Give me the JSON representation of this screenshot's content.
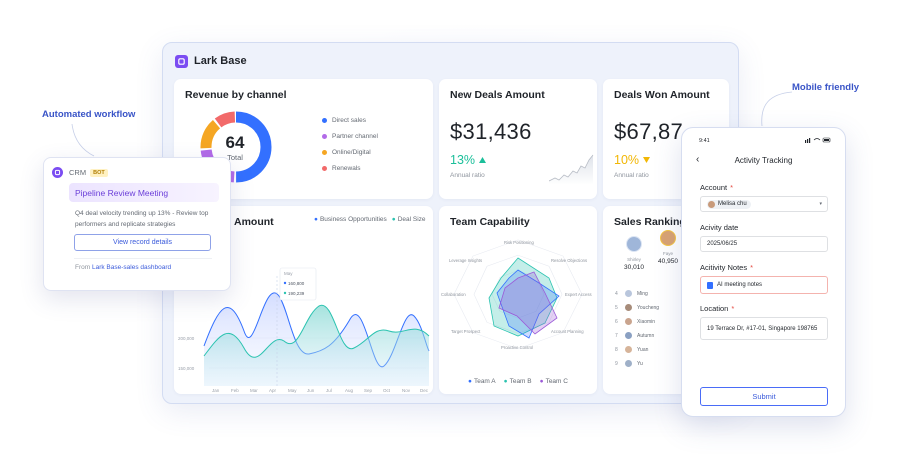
{
  "app": {
    "title": "Lark Base"
  },
  "callouts": {
    "left": "Automated workflow",
    "right": "Mobile friendly"
  },
  "revenue_card": {
    "title": "Revenue by channel",
    "center_value": "64",
    "center_label": "Total",
    "legend": [
      {
        "label": "Direct sales",
        "color": "#3370ff"
      },
      {
        "label": "Partner channel",
        "color": "#b26be8"
      },
      {
        "label": "Online/Digital",
        "color": "#f5a623"
      },
      {
        "label": "Renewals",
        "color": "#f26a6a"
      }
    ]
  },
  "new_deals": {
    "title": "New Deals Amount",
    "value": "$31,436",
    "change": "13%",
    "trend": "up",
    "sub": "Annual ratio",
    "color": "#1bbf9a"
  },
  "won_deals": {
    "title": "Deals Won Amount",
    "value": "$67,87",
    "change": "10%",
    "trend": "down",
    "sub": "Annual ratio",
    "color": "#f2b705"
  },
  "deals_chart": {
    "title": "Amount",
    "legend": [
      {
        "label": "Business Opportunities",
        "color": "#3370ff"
      },
      {
        "label": "Deal Size",
        "color": "#2bc3b0"
      }
    ],
    "tooltip": {
      "header": "May",
      "v1": "160,800",
      "v2": "190,239"
    },
    "y_ticks": [
      "200,000",
      "150,000"
    ],
    "months": [
      "Jan",
      "Feb",
      "Mar",
      "Apr",
      "May",
      "Jun",
      "Jul",
      "Aug",
      "Sep",
      "Oct",
      "Nov",
      "Dec"
    ]
  },
  "team_card": {
    "title": "Team Capability",
    "axes": [
      "Risk Positioning",
      "Resolve Objections",
      "Expert Access",
      "Account Planning",
      "Proactive Control",
      "Target Prospect",
      "Collaboration",
      "Leverage Insights"
    ],
    "teams": [
      {
        "name": "Team A",
        "color": "#3370ff"
      },
      {
        "name": "Team B",
        "color": "#2bc3b0"
      },
      {
        "name": "Team C",
        "color": "#9b59d8"
      }
    ]
  },
  "ranking_card": {
    "title": "Sales Ranking",
    "top": [
      {
        "name": "Shirley",
        "value": "30,010"
      },
      {
        "name": "Faye",
        "value": "40,950"
      }
    ],
    "rows": [
      {
        "rank": "4",
        "name": "Ming"
      },
      {
        "rank": "5",
        "name": "Youcheng"
      },
      {
        "rank": "6",
        "name": "Xiaomin"
      },
      {
        "rank": "7",
        "name": "Autumn"
      },
      {
        "rank": "8",
        "name": "Yuan"
      },
      {
        "rank": "9",
        "name": "Yu"
      }
    ]
  },
  "crm": {
    "app": "CRM",
    "badge": "BOT",
    "banner": "Pipeline Review Meeting",
    "body": "Q4 deal velocity trending up 13% - Review top performers and replicate strategies",
    "button": "View record details",
    "from_prefix": "From",
    "from_link": "Lark Base-sales dashboard"
  },
  "phone": {
    "time": "9:41",
    "title": "Activity Tracking",
    "account_label": "Account",
    "account_value": "Melisa chu",
    "date_label": "Acivity date",
    "date_value": "2025/06/25",
    "notes_label": "Acitivity Notes",
    "notes_value": "AI meeting notes",
    "location_label": "Location",
    "location_value": "19 Terrace Dr, #17-01, Singapore 198765",
    "submit": "Submit"
  }
}
